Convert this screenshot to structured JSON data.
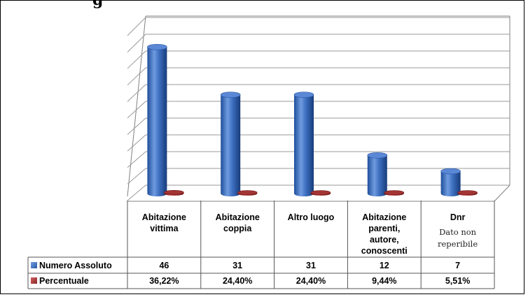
{
  "title_fragment": "g",
  "chart_data": {
    "type": "bar",
    "style": "3d-cylinder",
    "grid": true,
    "categories": [
      {
        "lines": [
          "Abitazione",
          "vittima"
        ]
      },
      {
        "lines": [
          "Abitazione",
          "coppia"
        ]
      },
      {
        "lines": [
          "Altro luogo"
        ]
      },
      {
        "lines": [
          "Abitazione",
          "parenti,",
          "autore,",
          "conoscenti"
        ]
      },
      {
        "lines": [
          "Dnr"
        ],
        "note_lines": [
          "Dato non",
          "reperibile"
        ]
      }
    ],
    "series": [
      {
        "name": "Numero Assoluto",
        "color": "#3f73c4",
        "values": [
          46,
          31,
          31,
          12,
          7
        ],
        "display": [
          "46",
          "31",
          "31",
          "12",
          "7"
        ]
      },
      {
        "name": "Percentuale",
        "color": "#b23b3b",
        "values": [
          36.22,
          24.4,
          24.4,
          9.44,
          5.51
        ],
        "display": [
          "36,22%",
          "24,40%",
          "24,40%",
          "9,44%",
          "5,51%"
        ]
      }
    ],
    "ylim": [
      0,
      50
    ]
  }
}
